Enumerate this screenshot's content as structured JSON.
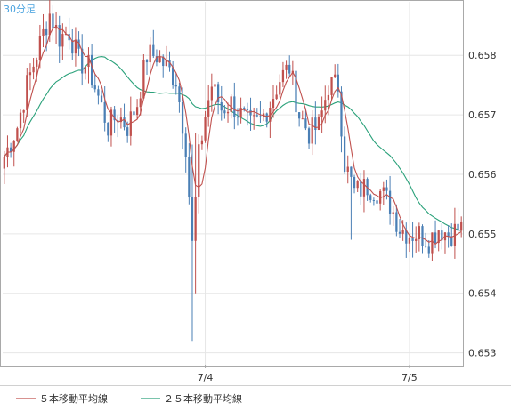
{
  "chart": {
    "period_label": "30分足",
    "legend": [
      {
        "label": "５本移動平均線",
        "color": "#c0504d"
      },
      {
        "label": "２５本移動平均線",
        "color": "#2aa17a"
      }
    ]
  },
  "chart_data": {
    "type": "candlestick",
    "y_ticks": [
      "0.653",
      "0.654",
      "0.655",
      "0.656",
      "0.657",
      "0.658"
    ],
    "ylim": [
      0.6528,
      0.6589
    ],
    "x_ticks": [
      {
        "label": "7/4",
        "index": 62
      },
      {
        "label": "7/5",
        "index": 125
      }
    ],
    "candle_count": 142,
    "colors": {
      "up": "#c0504d",
      "down": "#4a7fb5"
    },
    "anchors": [
      [
        0,
        0.6563
      ],
      [
        4,
        0.6568
      ],
      [
        7,
        0.6575
      ],
      [
        11,
        0.6582
      ],
      [
        14,
        0.6587
      ],
      [
        17,
        0.6583
      ],
      [
        20,
        0.6584
      ],
      [
        23,
        0.6579
      ],
      [
        26,
        0.6578
      ],
      [
        29,
        0.6573
      ],
      [
        32,
        0.6568
      ],
      [
        35,
        0.657
      ],
      [
        38,
        0.6568
      ],
      [
        41,
        0.6572
      ],
      [
        44,
        0.658
      ],
      [
        47,
        0.658
      ],
      [
        50,
        0.6578
      ],
      [
        53,
        0.6576
      ],
      [
        56,
        0.6565
      ],
      [
        58,
        0.6548
      ],
      [
        60,
        0.6563
      ],
      [
        62,
        0.657
      ],
      [
        64,
        0.6575
      ],
      [
        67,
        0.6571
      ],
      [
        70,
        0.6572
      ],
      [
        73,
        0.657
      ],
      [
        76,
        0.6568
      ],
      [
        79,
        0.6569
      ],
      [
        82,
        0.6572
      ],
      [
        85,
        0.6576
      ],
      [
        88,
        0.6578
      ],
      [
        91,
        0.657
      ],
      [
        94,
        0.6567
      ],
      [
        97,
        0.6568
      ],
      [
        100,
        0.6575
      ],
      [
        103,
        0.6575
      ],
      [
        105,
        0.6562
      ],
      [
        108,
        0.6557
      ],
      [
        112,
        0.6558
      ],
      [
        116,
        0.6557
      ],
      [
        119,
        0.6555
      ],
      [
        122,
        0.6551
      ],
      [
        125,
        0.655
      ],
      [
        128,
        0.655
      ],
      [
        131,
        0.6549
      ],
      [
        134,
        0.6551
      ],
      [
        137,
        0.655
      ],
      [
        141,
        0.6551
      ]
    ],
    "spikes": [
      {
        "index": 58,
        "low": 0.6532,
        "high": 0.6565
      },
      {
        "index": 59,
        "low": 0.654,
        "high": 0.6567
      },
      {
        "index": 107,
        "low": 0.6549,
        "high": 0.656
      },
      {
        "index": 126,
        "low": 0.6546,
        "high": 0.6552
      }
    ],
    "series": [
      {
        "name": "５本移動平均線",
        "type": "sma",
        "period": 5
      },
      {
        "name": "２５本移動平均線",
        "type": "sma",
        "period": 25
      }
    ]
  }
}
